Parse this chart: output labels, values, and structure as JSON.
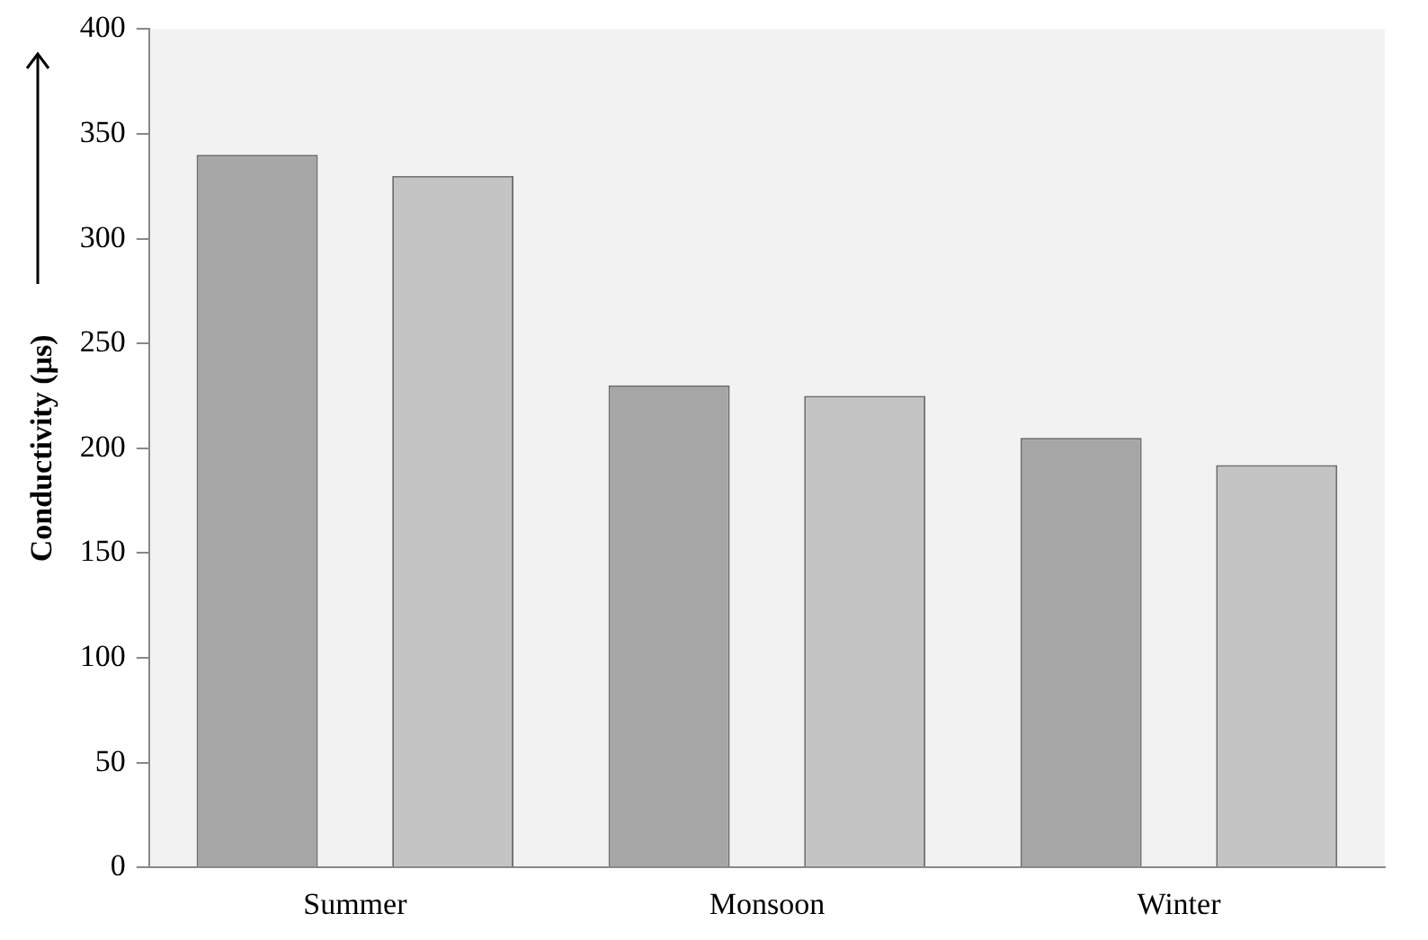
{
  "chart_data": {
    "type": "bar",
    "ylabel": "Conductivity (µs)",
    "categories": [
      "Summer",
      "Monsoon",
      "Winter"
    ],
    "series": [
      {
        "color": "#a6a6a6",
        "values": [
          340,
          230,
          205
        ]
      },
      {
        "color": "#c4c4c4",
        "values": [
          330,
          225,
          192
        ]
      }
    ],
    "ylim": [
      0,
      400
    ],
    "yticks": [
      0,
      50,
      100,
      150,
      200,
      250,
      300,
      350,
      400
    ],
    "grid": false,
    "legend": false
  }
}
